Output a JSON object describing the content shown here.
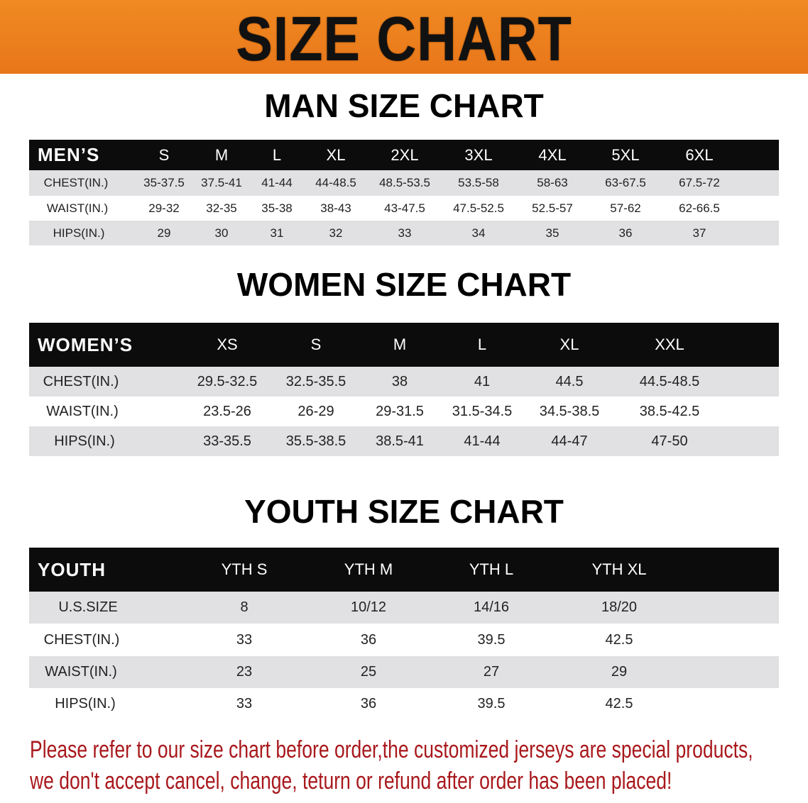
{
  "banner_title": "SIZE CHART",
  "men": {
    "title": "MAN SIZE CHART",
    "header": [
      "MEN’S",
      "S",
      "M",
      "L",
      "XL",
      "2XL",
      "3XL",
      "4XL",
      "5XL",
      "6XL"
    ],
    "rows": [
      [
        "CHEST(IN.)",
        "35-37.5",
        "37.5-41",
        "41-44",
        "44-48.5",
        "48.5-53.5",
        "53.5-58",
        "58-63",
        "63-67.5",
        "67.5-72"
      ],
      [
        "WAIST(IN.)",
        "29-32",
        "32-35",
        "35-38",
        "38-43",
        "43-47.5",
        "47.5-52.5",
        "52.5-57",
        "57-62",
        "62-66.5"
      ],
      [
        "HIPS(IN.)",
        "29",
        "30",
        "31",
        "32",
        "33",
        "34",
        "35",
        "36",
        "37"
      ]
    ]
  },
  "women": {
    "title": "WOMEN SIZE CHART",
    "header": [
      "WOMEN’S",
      "XS",
      "S",
      "M",
      "L",
      "XL",
      "XXL"
    ],
    "rows": [
      [
        "CHEST(IN.)",
        "29.5-32.5",
        "32.5-35.5",
        "38",
        "41",
        "44.5",
        "44.5-48.5"
      ],
      [
        "WAIST(IN.)",
        "23.5-26",
        "26-29",
        "29-31.5",
        "31.5-34.5",
        "34.5-38.5",
        "38.5-42.5"
      ],
      [
        "HIPS(IN.)",
        "33-35.5",
        "35.5-38.5",
        "38.5-41",
        "41-44",
        "44-47",
        "47-50"
      ]
    ]
  },
  "youth": {
    "title": "YOUTH SIZE CHART",
    "header": [
      "YOUTH",
      "YTH S",
      "YTH M",
      "YTH L",
      "YTH XL"
    ],
    "rows": [
      [
        "U.S.SIZE",
        "8",
        "10/12",
        "14/16",
        "18/20"
      ],
      [
        "CHEST(IN.)",
        "33",
        "36",
        "39.5",
        "42.5"
      ],
      [
        "WAIST(IN.)",
        "23",
        "25",
        "27",
        "29"
      ],
      [
        "HIPS(IN.)",
        "33",
        "36",
        "39.5",
        "42.5"
      ]
    ]
  },
  "footer": {
    "line1": "Please refer to our size chart before order,the customized jerseys are special products,",
    "line2": "we don't accept cancel, change, teturn or refund after order has been placed!"
  },
  "colors": {
    "banner": "#e8781a",
    "header_bg": "#0c0c0c",
    "stripe": "#e1e1e3",
    "notice": "#a8181c"
  }
}
